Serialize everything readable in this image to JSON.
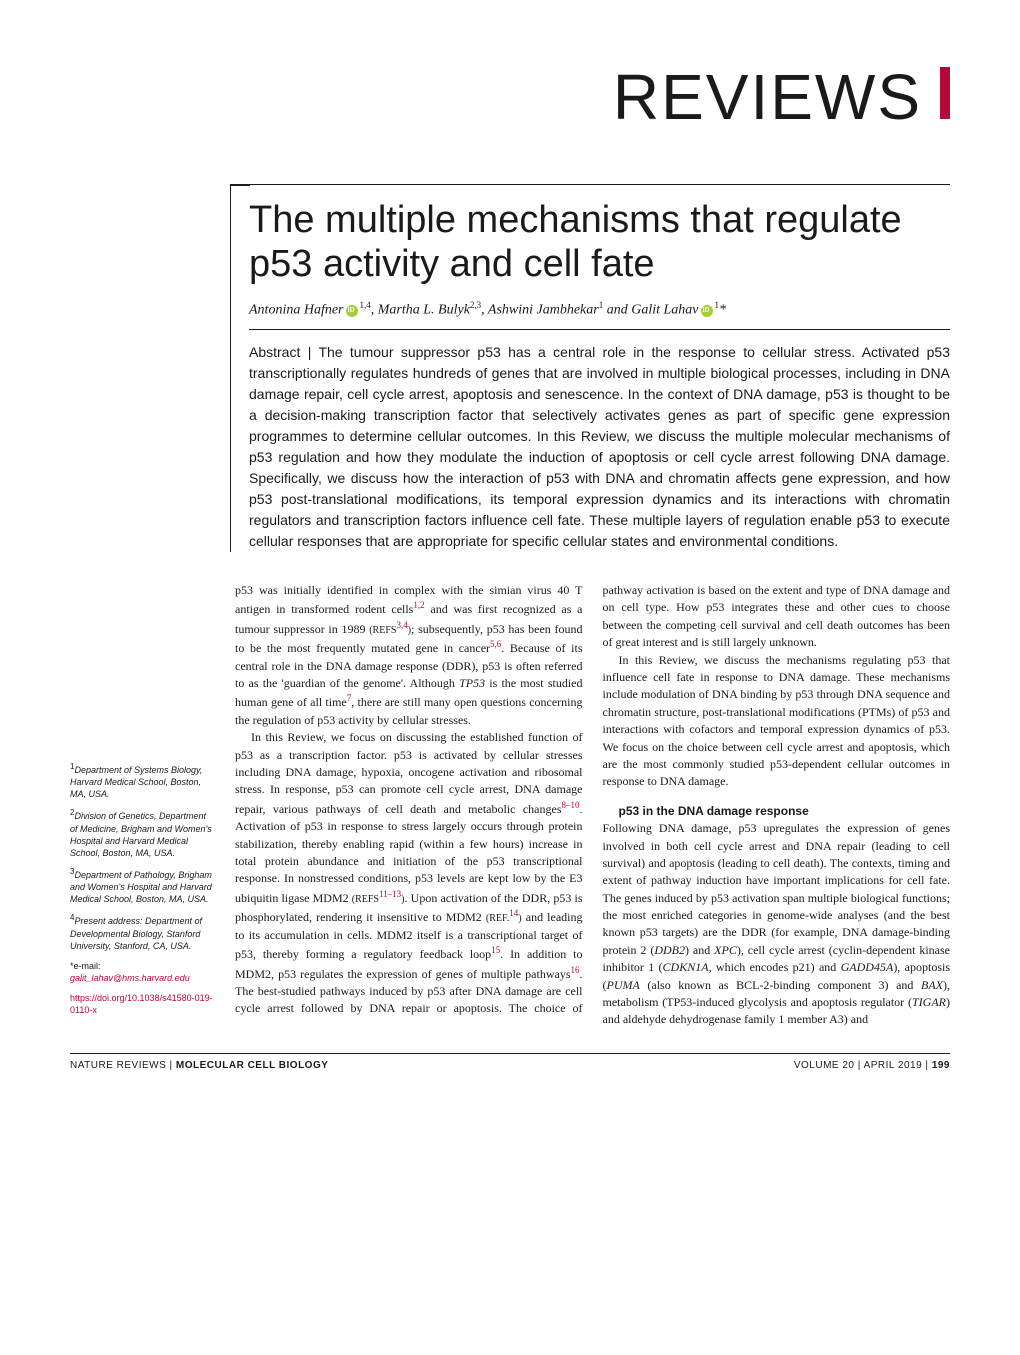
{
  "section_header": "REVIEWS",
  "colors": {
    "accent": "#b30838",
    "orcid": "#a6ce39",
    "text": "#1a1a1a",
    "background": "#ffffff"
  },
  "typography": {
    "section_title_fontsize": 64,
    "article_title_fontsize": 38,
    "authors_fontsize": 14,
    "abstract_fontsize": 14,
    "body_fontsize": 12,
    "affil_fontsize": 9,
    "footer_fontsize": 10
  },
  "article": {
    "title": "The multiple mechanisms that regulate p53 activity and cell fate",
    "authors_html": "Antonina Hafner",
    "author1": "Antonina Hafner",
    "author1_sup": "1,4",
    "author2": ", Martha L. Bulyk",
    "author2_sup": "2,3",
    "author3": ", Ashwini Jambhekar",
    "author3_sup": "1",
    "author4": " and Galit Lahav",
    "author4_sup": "1",
    "author4_star": "*",
    "abstract_label": "Abstract | ",
    "abstract": "The tumour suppressor p53 has a central role in the response to cellular stress. Activated p53 transcriptionally regulates hundreds of genes that are involved in multiple biological processes, including in DNA damage repair, cell cycle arrest, apoptosis and senescence. In the context of DNA damage, p53 is thought to be a decision-making transcription factor that selectively activates genes as part of specific gene expression programmes to determine cellular outcomes. In this Review, we discuss the multiple molecular mechanisms of p53 regulation and how they modulate the induction of apoptosis or cell cycle arrest following DNA damage. Specifically, we discuss how the interaction of p53 with DNA and chromatin affects gene expression, and how p53 post-translational modifications, its temporal expression dynamics and its interactions with chromatin regulators and transcription factors influence cell fate. These multiple layers of regulation enable p53 to execute cellular responses that are appropriate for specific cellular states and environmental conditions."
  },
  "affiliations": {
    "a1_sup": "1",
    "a1": "Department of Systems Biology, Harvard Medical School, Boston, MA, USA.",
    "a2_sup": "2",
    "a2": "Division of Genetics, Department of Medicine, Brigham and Women's Hospital and Harvard Medical School, Boston, MA, USA.",
    "a3_sup": "3",
    "a3": "Department of Pathology, Brigham and Women's Hospital and Harvard Medical School, Boston, MA, USA.",
    "a4_sup": "4",
    "a4": "Present address: Department of Developmental Biology, Stanford University, Stanford, CA, USA.",
    "corr_label": "*e-mail: ",
    "corr_email": "galit_lahav@hms.harvard.edu",
    "doi": "https://doi.org/10.1038/s41580-019-0110-x"
  },
  "body": {
    "p1a": "p53 was initially identified in complex with the simian virus 40 T antigen in transformed rodent cells",
    "p1_ref1": "1,2",
    "p1b": " and was first recognized as a tumour suppressor in 1989 ",
    "p1_ref2pre": "(REFS",
    "p1_ref2": "3,4",
    "p1_ref2post": ")",
    "p1c": "; subsequently, p53 has been found to be the most frequently mutated gene in cancer",
    "p1_ref3": "5,6",
    "p1d": ". Because of its central role in the DNA damage response (DDR), p53 is often referred to as the 'guardian of the genome'. Although ",
    "p1_ital1": "TP53",
    "p1e": " is the most studied human gene of all time",
    "p1_ref4": "7",
    "p1f": ", there are still many open questions concerning the regulation of p53 activity by cellular stresses.",
    "p2a": "In this Review, we focus on discussing the established function of p53 as a transcription factor. p53 is activated by cellular stresses including DNA damage, hypoxia, oncogene activation and ribosomal stress. In response, p53 can promote cell cycle arrest, DNA damage repair, various pathways of cell death and metabolic changes",
    "p2_ref1": "8–10",
    "p2b": ". Activation of p53 in response to stress largely occurs through protein stabilization, thereby enabling rapid (within a few hours) increase in total protein abundance and initiation of the p53 transcriptional response. In nonstressed conditions, p53 levels are kept low by the E3 ubiquitin ligase MDM2 ",
    "p2_ref2pre": "(REFS",
    "p2_ref2": "11–13",
    "p2_ref2post": ")",
    "p2c": ". Upon activation of the DDR, p53 is phosphorylated, rendering it insensitive to MDM2 ",
    "p2_ref3pre": "(REF.",
    "p2_ref3": "14",
    "p2_ref3post": ")",
    "p2d": " and leading to its accumulation in cells. MDM2 itself is a transcriptional target of p53, thereby forming a regulatory feedback loop",
    "p2_ref4": "15",
    "p2e": ". In addition to MDM2, p53 regulates the expression of genes of multiple pathways",
    "p2_ref5": "16",
    "p2f": ". The best-studied pathways induced by p53 after DNA damage are cell cycle arrest followed by DNA repair or apoptosis. The choice of pathway activation is based on the extent and type of DNA damage ",
    "p3a": "and on cell type. How p53 integrates these and other cues to choose between the competing cell survival and cell death outcomes has been of great interest and is still largely unknown.",
    "p4a": "In this Review, we discuss the mechanisms regulating p53 that influence cell fate in response to DNA damage. These mechanisms include modulation of DNA binding by p53 through DNA sequence and chromatin structure, post-translational modifications (PTMs) of p53 and interactions with cofactors and temporal expression dynamics of p53. We focus on the choice between cell cycle arrest and apoptosis, which are the most commonly studied p53-dependent cellular outcomes in response to DNA damage.",
    "h1": "p53 in the DNA damage response",
    "p5a": "Following DNA damage, p53 upregulates the expression of genes involved in both cell cycle arrest and DNA repair (leading to cell survival) and apoptosis (leading to cell death). The contexts, timing and extent of pathway induction have important implications for cell fate. The genes induced by p53 activation span multiple biological functions; the most enriched categories in genome-wide analyses (and the best known p53 targets) are the DDR (for example, DNA damage-binding protein 2 (",
    "p5_ital1": "DDB2",
    "p5b": ") and ",
    "p5_ital2": "XPC",
    "p5c": "), cell cycle arrest (cyclin-dependent kinase inhibitor 1 (",
    "p5_ital3": "CDKN1A",
    "p5d": ", which encodes p21) and ",
    "p5_ital4": "GADD45A",
    "p5e": "), apoptosis (",
    "p5_ital5": "PUMA",
    "p5f": " (also known as BCL-2-binding component 3) and ",
    "p5_ital6": "BAX",
    "p5g": "), metabolism (TP53-induced glycolysis and apoptosis regulator (",
    "p5_ital7": "TIGAR",
    "p5h": ") and aldehyde dehydrogenase family 1 member A3) and"
  },
  "footer": {
    "left_prefix": "NATURE REVIEWS | ",
    "left_journal": "MOLECULAR CELL BIOLOGY",
    "right_vol": "VOLUME 20 | APRIL 2019 | ",
    "right_page": "199"
  }
}
